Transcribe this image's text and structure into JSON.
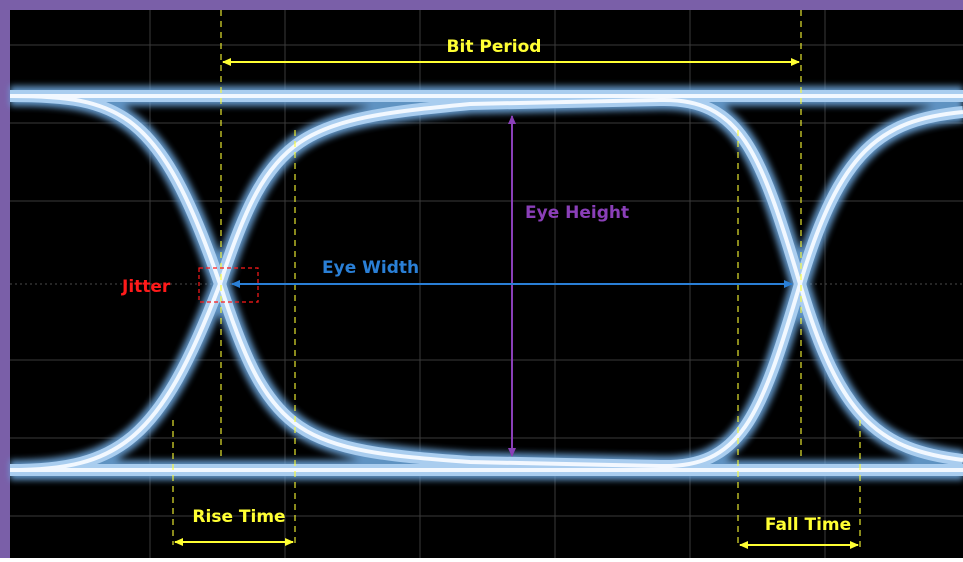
{
  "labels": {
    "bit_period": "Bit Period",
    "eye_height": "Eye Height",
    "eye_width": "Eye Width",
    "jitter": "Jitter",
    "rise_time": "Rise Time",
    "fall_time": "Fall Time"
  },
  "colors": {
    "frame": "#7a5fa8",
    "background": "#000000",
    "grid": "#3a3a3a",
    "trace_glow": "#6aa3d8",
    "trace_core": "#f2f8ff",
    "annotation_yellow": "#ffff33",
    "eye_height": "#8a3fb8",
    "eye_width": "#2a7fd6",
    "jitter": "#ff1a1a"
  }
}
